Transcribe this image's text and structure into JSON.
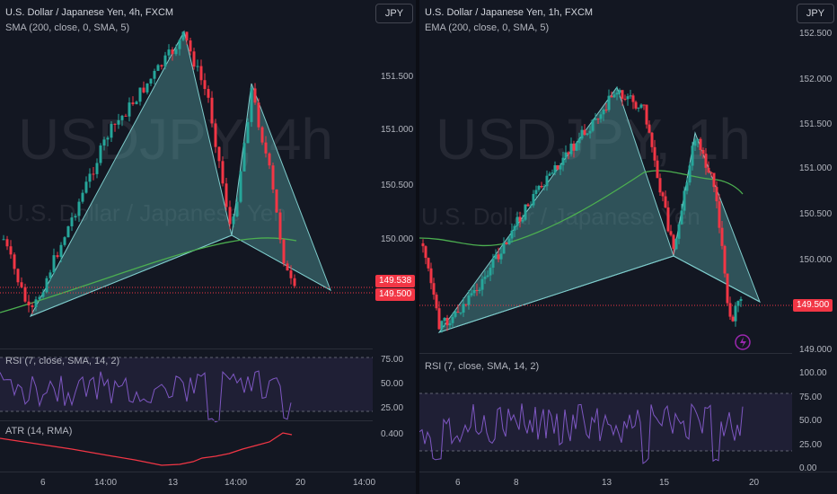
{
  "left": {
    "title": "U.S. Dollar / Japanese Yen, 4h, FXCM",
    "indicator": "SMA (200, close, 0, SMA, 5)",
    "currency_button": "JPY",
    "watermark_symbol": "USDJPY, 4h",
    "watermark_name": "U.S. Dollar / Japanese Yen",
    "price_ticks": [
      "151.500",
      "151.000",
      "150.500",
      "150.000"
    ],
    "price_tag_1": "149.538",
    "price_tag_2": "149.500",
    "rsi_label": "RSI (7, close, SMA, 14, 2)",
    "rsi_ticks": [
      "75.00",
      "50.00",
      "25.00"
    ],
    "atr_label": "ATR (14, RMA)",
    "atr_tick": "0.400",
    "time_ticks": [
      "6",
      "14:00",
      "13",
      "14:00",
      "20",
      "14:00"
    ]
  },
  "right": {
    "title": "U.S. Dollar / Japanese Yen, 1h, FXCM",
    "indicator": "EMA (200, close, 0, SMA, 5)",
    "currency_button": "JPY",
    "watermark_symbol": "USDJPY, 1h",
    "watermark_name": "U.S. Dollar / Japanese Yen",
    "price_ticks": [
      "152.500",
      "152.000",
      "151.500",
      "151.000",
      "150.500",
      "150.000",
      "149.000"
    ],
    "price_tag": "149.500",
    "rsi_label": "RSI (7, close, SMA, 14, 2)",
    "rsi_ticks": [
      "100.00",
      "75.00",
      "50.00",
      "25.00",
      "0.00"
    ],
    "time_ticks": [
      "6",
      "8",
      "13",
      "15",
      "20"
    ]
  },
  "colors": {
    "background": "#131722",
    "bull": "#26a69a",
    "bear": "#f23645",
    "pattern_fill": "#5fb3b3",
    "ma_line": "#4caf50",
    "rsi_line": "#7e57c2",
    "atr_line": "#f23645"
  }
}
